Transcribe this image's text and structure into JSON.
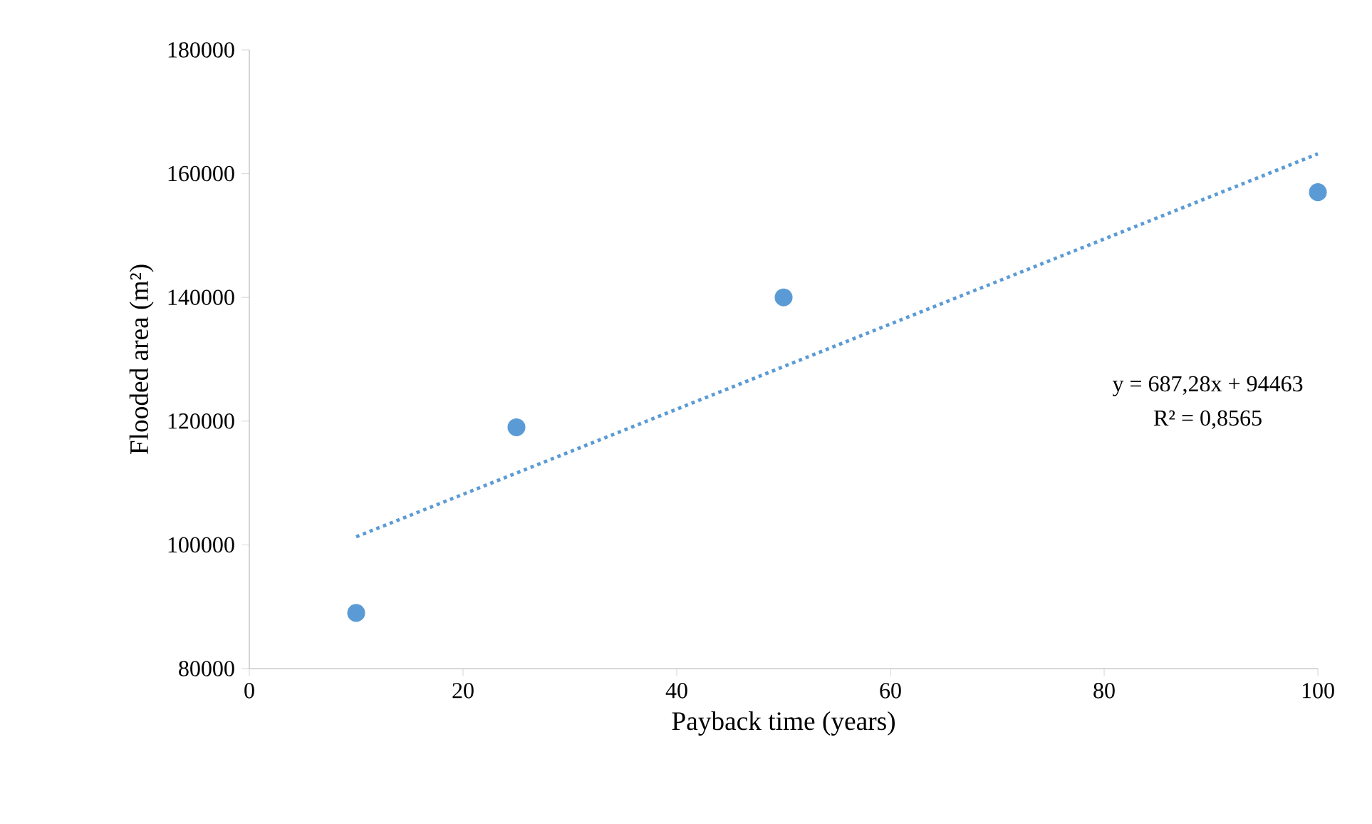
{
  "chart_data": {
    "type": "scatter",
    "xlabel": "Payback time (years)",
    "ylabel": "Flooded area (m²)",
    "xlim": [
      0,
      100
    ],
    "xticks": [
      0,
      20,
      40,
      60,
      80,
      100
    ],
    "ylim": [
      80000,
      180000
    ],
    "yticks": [
      80000,
      100000,
      120000,
      140000,
      160000,
      180000
    ],
    "series": [
      {
        "color": "#5b9bd5",
        "marker": "circle",
        "x": [
          10,
          25,
          50,
          100
        ],
        "values": [
          89000,
          119000,
          140000,
          157000
        ]
      },
      {
        "type": "line",
        "color": "#5b9bd5",
        "line_style": "dotted",
        "marker": "none",
        "x": [
          10,
          100
        ],
        "values": [
          101300,
          163200
        ]
      }
    ],
    "annotations": [
      "y = 687,28x + 94463",
      "R² = 0,8565"
    ]
  }
}
